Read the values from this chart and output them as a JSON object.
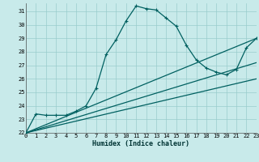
{
  "xlabel": "Humidex (Indice chaleur)",
  "bg_color": "#c8eaea",
  "line_color": "#006060",
  "grid_color": "#99cccc",
  "xlim": [
    0,
    23
  ],
  "ylim": [
    22,
    31.6
  ],
  "xticks": [
    0,
    1,
    2,
    3,
    4,
    5,
    6,
    7,
    8,
    9,
    10,
    11,
    12,
    13,
    14,
    15,
    16,
    17,
    18,
    19,
    20,
    21,
    22,
    23
  ],
  "yticks": [
    22,
    23,
    24,
    25,
    26,
    27,
    28,
    29,
    30,
    31
  ],
  "series": [
    {
      "x": [
        0,
        1,
        2,
        3,
        4,
        5,
        6,
        7,
        8,
        9,
        10,
        11,
        12,
        13,
        14,
        15,
        16,
        17,
        18,
        19,
        20,
        21,
        22,
        23
      ],
      "y": [
        22.0,
        23.4,
        23.3,
        23.3,
        23.3,
        23.6,
        24.0,
        25.3,
        27.8,
        28.9,
        30.3,
        31.4,
        31.2,
        31.1,
        30.5,
        29.9,
        28.5,
        27.4,
        26.8,
        26.5,
        26.3,
        26.7,
        28.3,
        29.0
      ],
      "has_marker": true
    },
    {
      "x": [
        0,
        23
      ],
      "y": [
        22.0,
        29.0
      ],
      "has_marker": false
    },
    {
      "x": [
        0,
        23
      ],
      "y": [
        22.0,
        27.2
      ],
      "has_marker": false
    },
    {
      "x": [
        0,
        23
      ],
      "y": [
        22.0,
        26.0
      ],
      "has_marker": false
    }
  ],
  "marker": "+",
  "markersize": 3.5,
  "linewidth": 0.9,
  "tick_fontsize": 5.0,
  "xlabel_fontsize": 6.0
}
